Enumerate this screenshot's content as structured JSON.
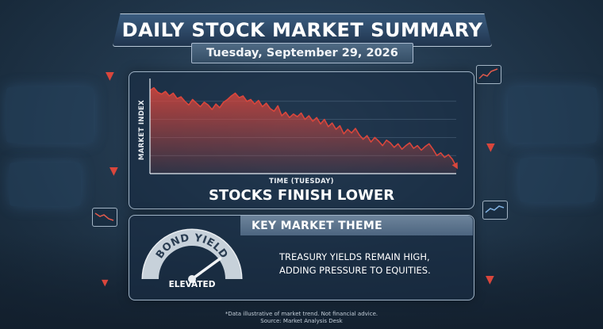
{
  "header": {
    "title": "DAILY STOCK MARKET SUMMARY",
    "date": "Tuesday, September 29, 2026"
  },
  "chart_data": {
    "type": "line",
    "ylabel": "MARKET INDEX",
    "xlabel": "TIME (TUESDAY)",
    "headline": "STOCKS FINISH LOWER",
    "ylim": [
      0,
      100
    ],
    "grid": true,
    "series": [
      {
        "values": [
          92,
          95,
          90,
          88,
          91,
          86,
          89,
          83,
          85,
          80,
          76,
          82,
          78,
          74,
          79,
          76,
          71,
          77,
          73,
          79,
          82,
          86,
          89,
          84,
          86,
          80,
          82,
          77,
          81,
          74,
          78,
          72,
          69,
          75,
          64,
          68,
          62,
          66,
          63,
          67,
          60,
          64,
          58,
          62,
          55,
          60,
          52,
          56,
          49,
          53,
          44,
          49,
          45,
          50,
          43,
          38,
          42,
          35,
          40,
          36,
          31,
          37,
          34,
          29,
          33,
          27,
          31,
          34,
          28,
          31,
          26,
          30,
          33,
          27,
          20,
          23,
          18,
          21,
          16,
          8
        ],
        "color": "#d9463c"
      }
    ]
  },
  "theme": {
    "label": "KEY MARKET THEME",
    "line1": "TREASURY YIELDS REMAIN HIGH,",
    "line2": "ADDING PRESSURE TO EQUITIES.",
    "gauge_title": "BOND YIELD",
    "gauge_level": "ELEVATED",
    "gauge_value": 0.8
  },
  "footer": {
    "disclaimer": "*Data illustrative of market trend. Not financial advice.",
    "source": "Source: Market Analysis Desk"
  },
  "icons": {
    "down_arrow": "down-arrow-icon",
    "monitor": "monitor-chart-icon"
  }
}
